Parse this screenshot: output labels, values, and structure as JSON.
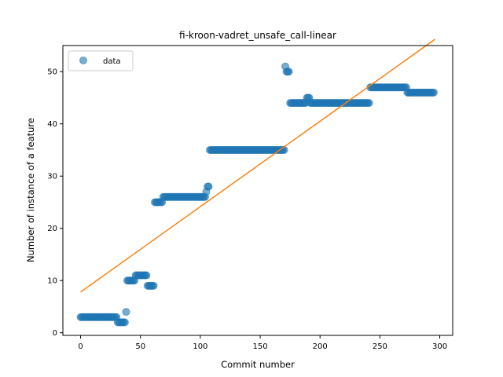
{
  "chart_data": {
    "type": "scatter",
    "title": "fi-kroon-vadret_unsafe_call-linear",
    "xlabel": "Commit number",
    "ylabel": "Number of instance of a feature",
    "xlim": [
      -14.8,
      310.8
    ],
    "ylim": [
      -0.5,
      55.0
    ],
    "xticks": [
      0,
      50,
      100,
      150,
      200,
      250,
      300
    ],
    "yticks": [
      0,
      10,
      20,
      30,
      40,
      50
    ],
    "legend": {
      "position": "top-left",
      "entries": [
        "data"
      ]
    },
    "colors": {
      "points": "#1f77b4",
      "fit": "#ff7f0e"
    },
    "fit_line": {
      "x": [
        0,
        296
      ],
      "y": [
        7.8,
        56.2
      ]
    },
    "series": [
      {
        "name": "data",
        "segments": [
          {
            "x_start": 0,
            "x_end": 30,
            "y": 3
          },
          {
            "x_start": 31,
            "x_end": 37,
            "y": 2
          },
          {
            "x_start": 38,
            "x_end": 38,
            "y": 4
          },
          {
            "x_start": 39,
            "x_end": 45,
            "y": 10
          },
          {
            "x_start": 46,
            "x_end": 55,
            "y": 11
          },
          {
            "x_start": 56,
            "x_end": 61,
            "y": 9
          },
          {
            "x_start": 62,
            "x_end": 68,
            "y": 25
          },
          {
            "x_start": 69,
            "x_end": 104,
            "y": 26
          },
          {
            "x_start": 105,
            "x_end": 105,
            "y": 27
          },
          {
            "x_start": 106,
            "x_end": 107,
            "y": 28
          },
          {
            "x_start": 108,
            "x_end": 170,
            "y": 35
          },
          {
            "x_start": 171,
            "x_end": 171,
            "y": 51
          },
          {
            "x_start": 172,
            "x_end": 174,
            "y": 50
          },
          {
            "x_start": 175,
            "x_end": 188,
            "y": 44
          },
          {
            "x_start": 189,
            "x_end": 191,
            "y": 45
          },
          {
            "x_start": 192,
            "x_end": 241,
            "y": 44
          },
          {
            "x_start": 242,
            "x_end": 272,
            "y": 47
          },
          {
            "x_start": 273,
            "x_end": 295,
            "y": 46
          }
        ]
      }
    ]
  }
}
